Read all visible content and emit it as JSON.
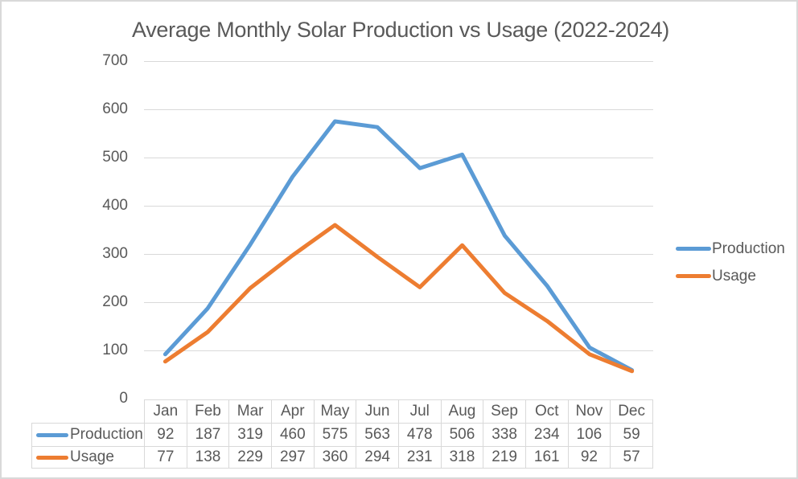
{
  "chart_data": {
    "type": "line",
    "title": "Average Monthly Solar Production vs Usage (2022-2024)",
    "categories": [
      "Jan",
      "Feb",
      "Mar",
      "Apr",
      "May",
      "Jun",
      "Jul",
      "Aug",
      "Sep",
      "Oct",
      "Nov",
      "Dec"
    ],
    "series": [
      {
        "name": "Production",
        "color": "#5B9BD5",
        "values": [
          92,
          187,
          319,
          460,
          575,
          563,
          478,
          506,
          338,
          234,
          106,
          59
        ]
      },
      {
        "name": "Usage",
        "color": "#ED7D31",
        "values": [
          77,
          138,
          229,
          297,
          360,
          294,
          231,
          318,
          219,
          161,
          92,
          57
        ]
      }
    ],
    "xlabel": "",
    "ylabel": "",
    "ylim": [
      0,
      700
    ],
    "y_ticks": [
      700,
      600,
      500,
      400,
      300,
      200,
      100,
      0
    ],
    "grid": "horizontal",
    "legend_position": "right",
    "data_table_shown": true
  },
  "colors": {
    "text": "#595959",
    "gridline": "#D9D9D9",
    "production": "#5B9BD5",
    "usage": "#ED7D31"
  }
}
